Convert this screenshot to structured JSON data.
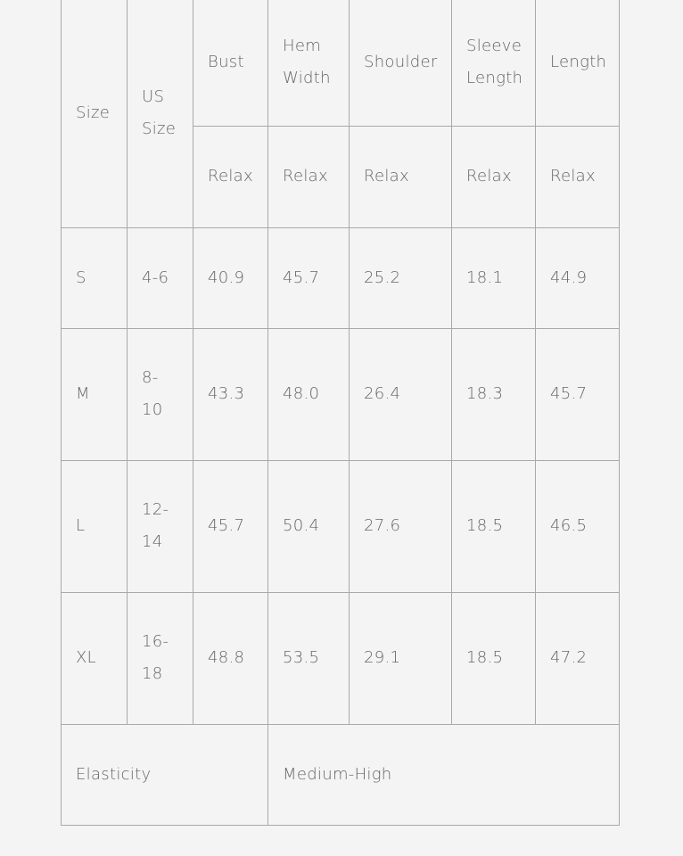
{
  "header": {
    "size": "Size",
    "us_size": "US Size",
    "columns": [
      "Bust",
      "Hem Width",
      "Shoulder",
      "Sleeve Length",
      "Length"
    ],
    "sub": [
      "Relax",
      "Relax",
      "Relax",
      "Relax",
      "Relax"
    ]
  },
  "rows": [
    {
      "size": "S",
      "us": "4-6",
      "vals": [
        "40.9",
        "45.7",
        "25.2",
        "18.1",
        "44.9"
      ]
    },
    {
      "size": "M",
      "us": "8-10",
      "vals": [
        "43.3",
        "48.0",
        "26.4",
        "18.3",
        "45.7"
      ]
    },
    {
      "size": "L",
      "us": "12-14",
      "vals": [
        "45.7",
        "50.4",
        "27.6",
        "18.5",
        "46.5"
      ]
    },
    {
      "size": "XL",
      "us": "16-18",
      "vals": [
        "48.8",
        "53.5",
        "29.1",
        "18.5",
        "47.2"
      ]
    }
  ],
  "elasticity": {
    "label": "Elasticity",
    "value": "Medium-High"
  }
}
